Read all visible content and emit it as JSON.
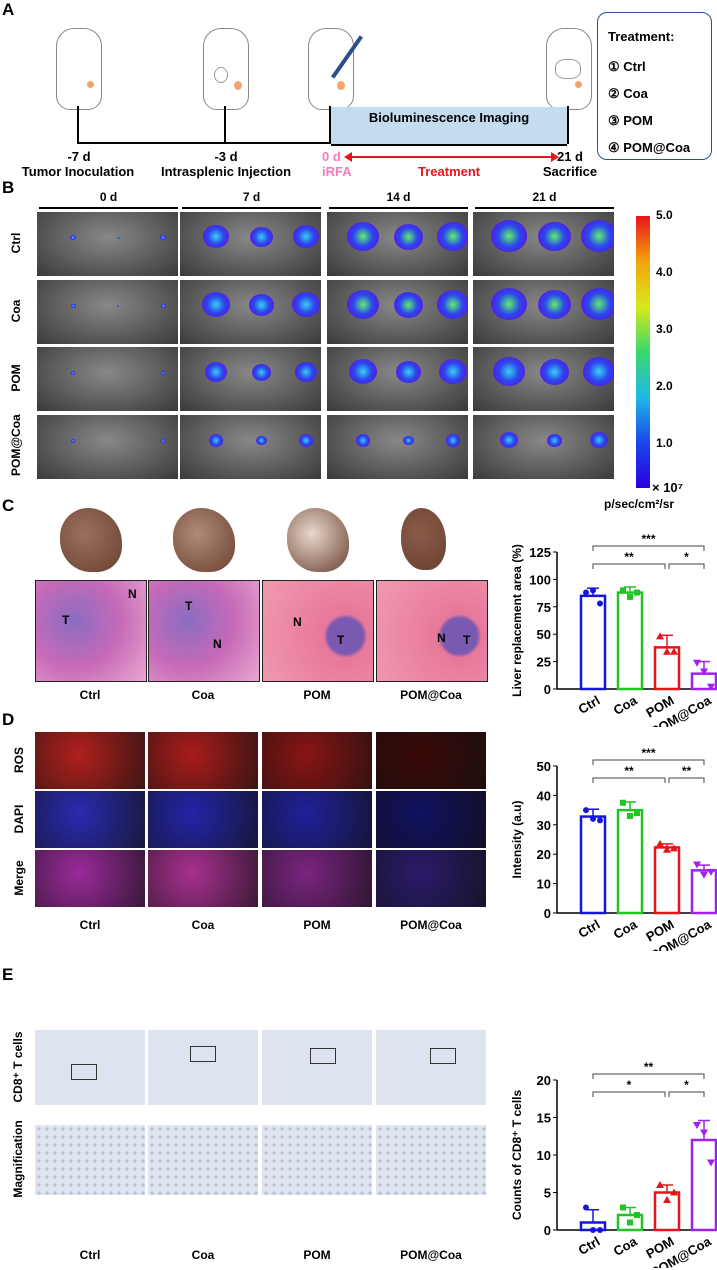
{
  "panels": {
    "a": "A",
    "b": "B",
    "c": "C",
    "d": "D",
    "e": "E"
  },
  "timeline": {
    "points": [
      {
        "day": "-7 d",
        "label": "Tumor Inoculation"
      },
      {
        "day": "-3 d",
        "label": "Intrasplenic Injection"
      },
      {
        "day": "0 d",
        "label": "iRFA"
      },
      {
        "day": "21 d",
        "label": "Sacrifice"
      }
    ],
    "imaging": "Bioluminescence Imaging",
    "treatment": "Treatment",
    "colors": {
      "irfa": "#f07cc0",
      "treatment": "#e8141c",
      "imaging_bg": "#c5dcef"
    }
  },
  "treatment_box": {
    "title": "Treatment:",
    "items": [
      "① Ctrl",
      "② Coa",
      "③ POM",
      "④ POM@Coa"
    ]
  },
  "groups": [
    "Ctrl",
    "Coa",
    "POM",
    "POM@Coa"
  ],
  "bli": {
    "days": [
      "0 d",
      "7 d",
      "14 d",
      "21 d"
    ],
    "colorbar": {
      "ticks": [
        "5.0",
        "4.0",
        "3.0",
        "2.0",
        "1.0"
      ],
      "scale": "× 10⁷",
      "unit": "p/sec/cm²/sr"
    }
  },
  "histology_labels": {
    "tumor": "T",
    "normal": "N"
  },
  "fluor_rows": [
    "ROS",
    "DAPI",
    "Merge"
  ],
  "ihc_rows": [
    "CD8⁺ T cells",
    "Magnification"
  ],
  "chart_data": [
    {
      "type": "bar",
      "ylabel": "Liver replacement area (%)",
      "ylim": [
        0,
        125
      ],
      "yticks": [
        0,
        25,
        50,
        75,
        100,
        125
      ],
      "categories": [
        "Ctrl",
        "Coa",
        "POM",
        "POM@Coa"
      ],
      "values": [
        85,
        88,
        38,
        14
      ],
      "sd": [
        7,
        5,
        11,
        11
      ],
      "points": [
        [
          88,
          90,
          78
        ],
        [
          90,
          84,
          88
        ],
        [
          48,
          34,
          34
        ],
        [
          24,
          16,
          2
        ]
      ],
      "colors": [
        "#1515e0",
        "#22c322",
        "#e8141c",
        "#a020f0"
      ],
      "significance": [
        {
          "pair": [
            "Ctrl",
            "POM@Coa"
          ],
          "label": "***"
        },
        {
          "pair": [
            "Ctrl",
            "POM"
          ],
          "label": "**"
        },
        {
          "pair": [
            "POM",
            "POM@Coa"
          ],
          "label": "*"
        }
      ]
    },
    {
      "type": "bar",
      "ylabel": "Intensity (a.u)",
      "ylim": [
        0,
        50
      ],
      "yticks": [
        0,
        10,
        20,
        30,
        40,
        50
      ],
      "categories": [
        "Ctrl",
        "Coa",
        "POM",
        "POM@Coa"
      ],
      "values": [
        32.8,
        35,
        22.3,
        14.5
      ],
      "sd": [
        2.5,
        2.8,
        1.2,
        1.8
      ],
      "points": [
        [
          35,
          32,
          31.5
        ],
        [
          37.5,
          33,
          34
        ],
        [
          23.5,
          21.5,
          22
        ],
        [
          16.5,
          13,
          14
        ]
      ],
      "colors": [
        "#1515e0",
        "#22c322",
        "#e8141c",
        "#a020f0"
      ],
      "significance": [
        {
          "pair": [
            "Ctrl",
            "POM@Coa"
          ],
          "label": "***"
        },
        {
          "pair": [
            "Ctrl",
            "POM"
          ],
          "label": "**"
        },
        {
          "pair": [
            "POM",
            "POM@Coa"
          ],
          "label": "**"
        }
      ]
    },
    {
      "type": "bar",
      "ylabel": "Counts of CD8⁺ T cells",
      "ylim": [
        0,
        20
      ],
      "yticks": [
        0,
        5,
        10,
        15,
        20
      ],
      "categories": [
        "Ctrl",
        "Coa",
        "POM",
        "POM@Coa"
      ],
      "values": [
        1,
        2,
        5,
        12
      ],
      "sd": [
        1.7,
        1,
        1,
        2.6
      ],
      "points": [
        [
          3,
          0,
          0
        ],
        [
          3,
          1,
          2
        ],
        [
          6,
          4,
          5
        ],
        [
          14,
          13,
          9
        ]
      ],
      "colors": [
        "#1515e0",
        "#22c322",
        "#e8141c",
        "#a020f0"
      ],
      "significance": [
        {
          "pair": [
            "Ctrl",
            "POM@Coa"
          ],
          "label": "**"
        },
        {
          "pair": [
            "Ctrl",
            "POM"
          ],
          "label": "*"
        },
        {
          "pair": [
            "POM",
            "POM@Coa"
          ],
          "label": "*"
        }
      ]
    }
  ]
}
